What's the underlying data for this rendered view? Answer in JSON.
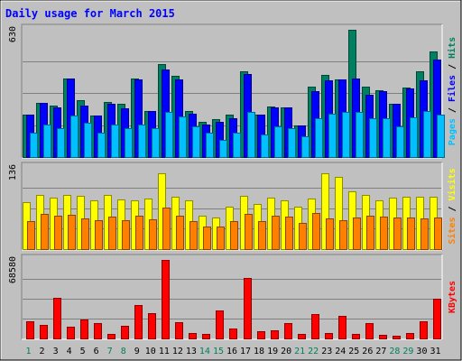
{
  "chart_data": {
    "type": "bar",
    "title": "Daily usage for March 2015",
    "categories": [
      "1",
      "2",
      "3",
      "4",
      "5",
      "6",
      "7",
      "8",
      "9",
      "10",
      "11",
      "12",
      "13",
      "14",
      "15",
      "16",
      "17",
      "18",
      "19",
      "20",
      "21",
      "22",
      "23",
      "24",
      "25",
      "26",
      "27",
      "28",
      "29",
      "30",
      "31"
    ],
    "weekend_days": [
      "1",
      "7",
      "8",
      "14",
      "15",
      "21",
      "22",
      "28",
      "29"
    ],
    "panels": [
      {
        "id": "hits-files-pages",
        "ylim": [
          0,
          630
        ],
        "top_label": "630",
        "legend": [
          {
            "label": "Pages",
            "color": "#00c0ff"
          },
          {
            "label": "Files",
            "color": "#0000ff"
          },
          {
            "label": "Hits",
            "color": "#00805c"
          }
        ],
        "series": [
          {
            "name": "Hits",
            "color": "#008060",
            "values": [
              210,
              265,
              255,
              385,
              280,
              205,
              270,
              260,
              385,
              225,
              455,
              400,
              225,
              175,
              185,
              210,
              420,
              210,
              250,
              245,
              155,
              345,
              405,
              380,
              625,
              345,
              330,
              260,
              340,
              420,
              520
            ]
          },
          {
            "name": "Files",
            "color": "#0000ff",
            "values": [
              210,
              265,
              245,
              385,
              255,
              205,
              260,
              240,
              380,
              225,
              430,
              380,
              215,
              160,
              175,
              190,
              410,
              210,
              245,
              245,
              155,
              325,
              375,
              380,
              385,
              305,
              325,
              260,
              335,
              375,
              480
            ]
          },
          {
            "name": "Pages",
            "color": "#00c0ff",
            "values": [
              120,
              160,
              140,
              205,
              170,
              120,
              160,
              140,
              160,
              140,
              220,
              200,
              150,
              120,
              85,
              120,
              220,
              110,
              150,
              140,
              100,
              190,
              215,
              220,
              220,
              190,
              190,
              150,
              195,
              225,
              210
            ]
          }
        ]
      },
      {
        "id": "visits-sites",
        "ylim": [
          0,
          136
        ],
        "top_label": "136",
        "legend": [
          {
            "label": "Sites",
            "color": "#ff8000"
          },
          {
            "label": "Visits",
            "color": "#ffff00"
          }
        ],
        "series": [
          {
            "name": "Visits",
            "color": "#ffff00",
            "values": [
              77,
              90,
              85,
              90,
              88,
              81,
              89,
              82,
              81,
              83,
              125,
              86,
              80,
              56,
              52,
              70,
              88,
              75,
              85,
              80,
              70,
              83,
              125,
              120,
              95,
              90,
              80,
              85,
              86,
              86,
              87
            ]
          },
          {
            "name": "Sites",
            "color": "#ff8000",
            "values": [
              47,
              59,
              56,
              57,
              51,
              48,
              54,
              48,
              56,
              50,
              68,
              56,
              46,
              38,
              37,
              46,
              59,
              46,
              55,
              54,
              44,
              60,
              51,
              48,
              52,
              55,
              54,
              52,
              52,
              51,
              52
            ]
          }
        ]
      },
      {
        "id": "kbytes",
        "ylim": [
          0,
          68580
        ],
        "top_label": "68580",
        "legend": [
          {
            "label": "KBytes",
            "color": "#ff0000"
          }
        ],
        "series": [
          {
            "name": "KBytes",
            "color": "#ff0000",
            "values": [
              14900,
              11500,
              35200,
              9900,
              16100,
              12900,
              3800,
              11300,
              29100,
              22000,
              67800,
              14000,
              4500,
              3800,
              24200,
              8800,
              52000,
              6000,
              6800,
              13100,
              4200,
              21100,
              4300,
              19700,
              4000,
              13100,
              3300,
              2500,
              5000,
              14800,
              34500
            ]
          }
        ]
      }
    ]
  }
}
